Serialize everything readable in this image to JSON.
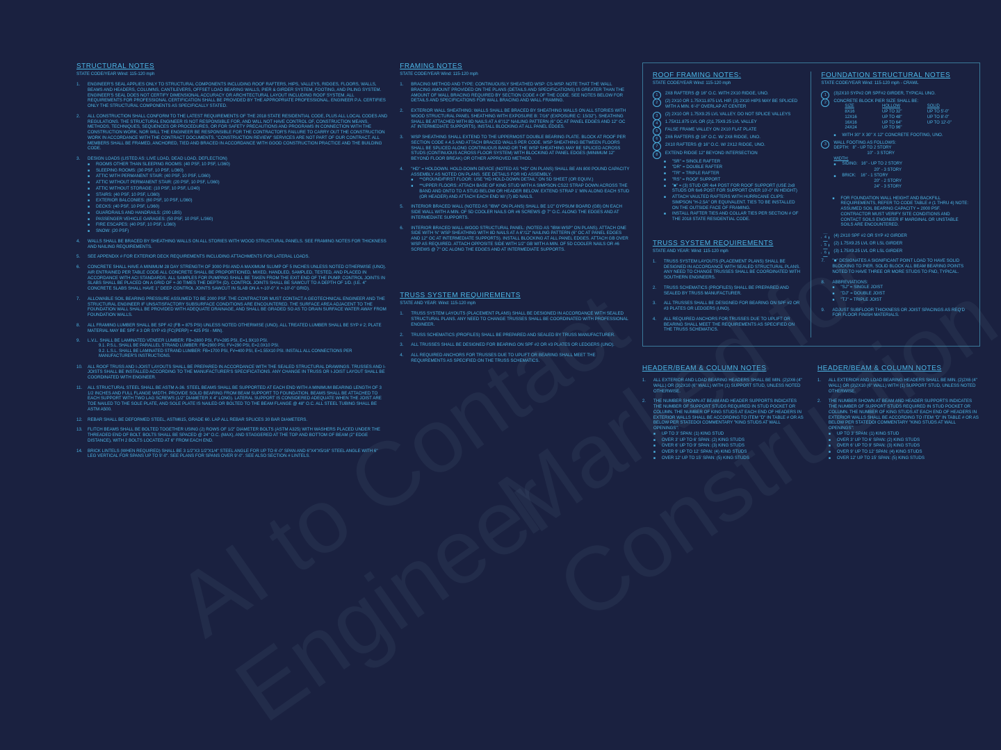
{
  "watermark1": "AI to Contact Engineer",
  "watermark2": "Marked for Construction",
  "structural": {
    "title": "STRUCTURAL NOTES",
    "subtitle": "STATE CODE/YEAR Wind: 115-120 mph",
    "items": [
      "ENGINEER'S SEAL APPLIES ONLY TO STRUCTURAL COMPONENTS INCLUDING ROOF RAFTERS, HIPS, VALLEYS, RIDGES, FLOORS, WALLS, BEAMS AND HEADERS, COLUMNS, CANTILEVERS, OFFSET LOAD BEARING WALLS, PIER & GIRDER SYSTEM, FOOTING, AND PILING SYSTEM. ENGINEER'S SEAL DOES NOT CERTIFY DIMENSIONAL ACCURACY OR ARCHITECTURAL LAYOUT INCLUDING ROOF SYSTEM. ALL REQUIREMENTS FOR PROFESSIONAL CERTIFICATION SHALL BE PROVIDED BY THE APPROPRIATE PROFESSIONAL. ENGINEER P.A. CERTIFIES ONLY THE STRUCTURAL COMPONENTS AS SPECIFICALLY STATED.",
      "ALL CONSTRUCTION SHALL CONFORM TO THE LATEST REQUIREMENTS OF THE 2018 STATE RESIDENTIAL CODE, PLUS ALL LOCAL CODES AND REGULATIONS. THE STRUCTURAL ENGINEER IS NOT RESPONSIBLE FOR, AND WILL NOT HAVE CONTROL OF, CONSTRUCTION MEANS, METHODS, TECHNIQUES, SEQUENCES OR PROCEDURES, OR FOR SAFETY PRECAUTIONS AND PROGRAMS IN CONNECTION WITH THE CONSTRUCTION WORK, NOR WILL THE ENGINEER BE RESPONSIBLE FOR THE CONTRACTOR'S FAILURE TO CARRY OUT THE CONSTRUCTION WORK IN ACCORDANCE WITH THE CONTRACT DOCUMENTS. \"CONSTRUCTION REVIEW\" SERVICES ARE NOT PART OF OUR CONTRACT. ALL MEMBERS SHALL BE FRAMED, ANCHORED, TIED AND BRACED IN ACCORDANCE WITH GOOD CONSTRUCTION PRACTICE AND THE BUILDING CODE.",
      "DESIGN LOADS (LISTED AS: LIVE LOAD, DEAD LOAD, DEFLECTION)",
      "WALLS SHALL BE BRACED BY SHEATHING WALLS ON ALL STORIES WITH WOOD STRUCTURAL PANELS. SEE FRAMING NOTES FOR THICKNESS AND NAILING REQUIREMENTS.",
      "SEE APPENDIX # FOR EXTERIOR DECK REQUIREMENTS INCLUDING ATTACHMENTS FOR LATERAL LOADS.",
      "CONCRETE SHALL HAVE A MINIMUM 28 DAY STRENGTH OF 3000 PSI AND A MAXIMUM SLUMP OF 5 INCHES UNLESS NOTED OTHERWISE (UNO). AIR ENTRAINED PER TABLE CODE ALL CONCRETE SHALL BE PROPORTIONED, MIXED, HANDLED, SAMPLED, TESTED, AND PLACED IN ACCORDANCE WITH ACI STANDARDS. ALL SAMPLES FOR PUMPING SHALL BE TAKEN FROM THE EXIT END OF THE PUMP. CONTROL JOINTS IN SLABS SHALL BE PLACED ON A GRID OF +-30 TIMES THE DEPTH (D). CONTROL JOINTS SHALL BE SAWCUT TO A DEPTH OF 1/D. (I.E. 4\" CONCRETE SLABS SHALL HAVE 1\" DEEP CONTROL JOINTS SAWCUT IN SLAB ON A +-10'-0\" x +-10'-0\" GRID).",
      "ALLOWABLE SOIL BEARING PRESSURE ASSUMED TO BE 2000 PSF. THE CONTRACTOR MUST CONTACT A GEOTECHNICAL ENGINEER AND THE STRUCTURAL ENGINEER IF UNSATISFACTORY SUBSURFACE CONDITIONS ARE ENCOUNTERED. THE SURFACE AREA ADJACENT TO THE FOUNDATION WALL SHALL BE PROVIDED WITH ADEQUATE DRAINAGE, AND SHALL BE GRADED SO AS TO DRAIN SURFACE WATER AWAY FROM FOUNDATION WALLS.",
      "ALL FRAMING LUMBER SHALL BE SPF #2 (Fb = 875 PSI) UNLESS NOTED OTHERWISE (UNO). ALL TREATED LUMBER SHALL BE SYP # 2; PLATE MATERIAL MAY BE SPF # 3 OR SYP #3 (Fc(perp) = 425 PSI - MIN).",
      "L.V.L. SHALL BE LAMINATED VENEER LUMBER: Fb=2800 PSI, Fv=285 PSI, E=1.9x10 PSI.",
      "ALL ROOF TRUSS AND I-JOIST LAYOUTS SHALL BE PREPARED IN ACCORDANCE WITH THE SEALED STRUCTURAL DRAWINGS. TRUSSES AND I-JOISTS SHALL BE INSTALLED ACCORDING TO THE MANUFACTURER'S SPECIFICATIONS. ANY CHANGE IN TRUSS OR I-JOIST LAYOUT SHALL BE COORDINATED WITH ENGINEER.",
      "ALL STRUCTURAL STEEL SHALL BE ASTM A-36. STEEL BEAMS SHALL BE SUPPORTED AT EACH END WITH A MINIMUM BEARING LENGTH OF 3 1/2 INCHES AND FULL FLANGE WIDTH. PROVIDE SOLID BEARING FROM BEAM SUPPORT TO FOUNDATION. BEAMS SHALL BE ATTACHED TO EACH SUPPORT WITH TWO LAG SCREWS (1/2\" DIAMETER x 4\" LONG). LATERAL SUPPORT IS CONSIDERED ADEQUATE WHEN THE JOIST ARE TOE NAILED TO THE SOLE PLATE, AND SOLE PLATE IS NAILED OR BOLTED TO THE BEAM FLANGE @ 48\" O.C. ALL STEEL TUBING SHALL BE ASTM A500.",
      "REBAR SHALL BE DEFORMED STEEL, ASTM615, GRADE 60. LAP ALL REBAR SPLICES 30 BAR DIAMETERS.",
      "FLITCH BEAMS SHALL BE BOLTED TOGETHER USING (2) ROWS OF 1/2\" DIAMETER BOLTS (ASTM A325) WITH WASHERS PLACED UNDER THE THREADED END OF BOLT. BOLTS SHALL BE SPACED @ 24\" O.C. (MAX), AND STAGGERED AT THE TOP AND BOTTOM OF BEAM (2\" EDGE DISTANCE), WITH 2 BOLTS LOCATED AT 6\" FROM EACH END.",
      "BRICK LINTELS (WHEN REQUIRED) SHALL BE 3 1/2\"x3 1/2\"x1/4\" STEEL ANGLE FOR UP TO 6'-0\" SPAN AND 6\"x4\"x5/16\" STEEL ANGLE WITH 6\" LEG VERTICAL FOR SPANS UP TO 9'-0\". SEE PLANS FOR SPANS OVER 9'-0\". SEE ALSO SECTION # LINTELS."
    ],
    "loads": [
      "ROOMS OTHER THAN SLEEPING ROOMS: (40 PSF, 10 PSF, L/360)",
      "SLEEPING ROOMS: (30 PSF, 10 PSF, L/360)",
      "ATTIC WITH PERMANENT STAIR: (40 PSF, 10 PSF, L/360)",
      "ATTIC WITHOUT PERMANENT STAIR: (20 PSF, 10 PSF, L/360)",
      "ATTIC WITHOUT STORAGE: (10 PSF, 10 PSF, L/240)",
      "STAIRS: (40 PSF, 10 PSF, L/360)",
      "EXTERIOR BALCONIES: (60 PSF, 10 PSF, L/360)",
      "DECKS: (40 PSF, 10 PSF, L/360)",
      "GUARDRAILS AND HANDRAILS: (200 LBS)",
      "PASSENGER VEHICLE GARAGES: (50 PSF, 10 PSF, L/360)",
      "FIRE ESCAPES: (40 PSF, 10 PSF, L/360)",
      "SNOW: (20 PSF)"
    ],
    "lvl": [
      "P.S.L. SHALL BE PARALLEL STRAND LUMBER: Fb=2900 PSI, Fv=290 PSI, E=2.0x10 PSI.",
      "L.S.L. SHALL BE LAMINATED STRAND LUMBER: Fb=1700 PSI, Fv=400 PSI, E=1.55x10 PSI. INSTALL ALL CONNECTIONS PER MANUFACTURER'S INSTRUCTIONS."
    ]
  },
  "framing": {
    "title": "FRAMING NOTES",
    "subtitle": "STATE CODE/YEAR Wind: 115-120 mph",
    "items": [
      "BRACING METHOD AND TYPE: CONTINUOUSLY SHEATHED WSP: CS-WSP. NOTE THAT THE WALL BRACING AMOUNT PROVIDED ON THE PLANS (DETAILS AND SPECIFICATIONS) IS GREATER THAN THE AMOUNT OF WALL BRACING REQUIRED BY SECTION CODE # OF THE CODE. SEE NOTES BELOW FOR DETAILS AND SPECIFICATIONS FOR WALL BRACING AND WALL FRAMING.",
      "EXTERIOR WALL SHEATHING: WALLS SHALL BE BRACED BY SHEATHING WALLS ON ALL STORIES WITH WOOD STRUCTURAL PANEL SHEATHING WITH EXPOSURE B: 7/16\" (EXPOSURE C: 15/32\"). SHEATHING SHALL BE ATTACHED WITH 8d NAILS AT A 6\"/12\" NAILING PATTERN (6\" OC AT PANEL EDGES AND 12\" OC AT INTERMEDIATE SUPPORTS). INSTALL BLOCKING AT ALL PANEL EDGES.",
      "WSP SHEATHING SHALL EXTEND TO THE UPPERMOST DOUBLE BEARING PLATE. BLOCK AT ROOF PER SECTION CODE #.4.5 AND ATTACH BRACED WALLS PER CODE. WSP SHEATHING BETWEEN FLOORS SHALL BE SPLICED ALONG CONTINUOUS BAND OR THE WSP SHEATHING MAY BE SPLICED ACROSS STUDS (CONTINUOUS ACROSS FLOOR SYSTEM) WITH BLOCKING AT PANEL EDGES (MINIMUM 12\" BEYOND FLOOR BREAK) OR OTHER APPROVED METHOD.",
      "\"HD\" = HOLDOWN. HOLD-DOWN DEVICE (NOTED AS \"HD\" ON PLANS) SHALL BE AN 800 POUND CAPACITY ASSEMBLY AS NOTED ON PLANS. SEE DETAILS FOR HD ASSEMBLY.",
      "INTERIOR BRACED WALL (NOTED AS \"IBW\" ON PLANS) SHALL BE 1/2\" GYPSUM BOARD (GB) ON EACH SIDE WALL WITH A MIN. OF 5d COOLER NAILS OR #6 SCREWS @ 7\" O.C. ALONG THE EDGES AND AT INTERMEDIATE SUPPORTS.",
      "INTERIOR BRACED WALL-WOOD STRUCTURAL PANEL: (NOTED AS \"IBW-WSP\" ON PLANS). ATTACH ONE SIDE WITH ⅜\" WSP SHEATHING WITH 8d NAILS AT A 6\"/12\" NAILING PATTERN (6\" OC AT PANEL EDGES AND 12\" OC AT INTERMEDIATE SUPPORTS). INSTALL BLOCKING AT ALL PANEL EDGES. ATTACH GB OVER WSP AS REQUIRED. ATTACH OPPOSITE SIDE WITH 1/2\" GB WITH A MIN. OF 5d COOLER NAILS OR #6 SCREWS @ 7\" OC ALONG THE EDGES AND AT INTERMEDIATE SUPPORTS."
    ],
    "item4sub": [
      "**GROUND/FIRST FLOOR: USE \"HD HOLD-DOWN DETAIL\" ON SD SHEET (OR EQUIV.)",
      "**UPPER FLOORS: ATTACH BASE OF KING STUD WITH A SIMPSON CS22 STRAP DOWN ACROSS THE BAND AND ONTO TO A STUD BELOW OR HEADER BELOW. EXTEND STRAP 1' MIN ALONG EACH STUD (OR HEADER) AND ATTACH EACH END W/ (7) 8d NAILS."
    ]
  },
  "roof": {
    "title": "ROOF FRAMING NOTES:",
    "subtitle": "STATE CODE/YEAR Wind: 115-120 mph",
    "items": [
      "2x8 RAFTERS @ 16\" O.C. WITH 2x10 RIDGE, UNO.",
      "(2) 2x10 OR 1.75x11.875 LVL HIP. (3) 2x10 HIPS MAY BE SPLICED WITH A MIN. 6'-0\" OVERLAP AT CENTER",
      "(2) 2x10 OR 1.75x9.25 LVL VALLEY. DO NOT SPLICE VALLEYS",
      "1.75x11.875 LVL OR (2)1.75x9.25 LVL VALLEY",
      "FALSE FRAME VALLEY ON 2x10 FLAT PLATE",
      "2x6 RAFTERS @ 16\" O.C. W/ 2x8 RIDGE, UNO.",
      "2x10 RAFTERS @ 16\" O.C. W/ 2x12 RIDGE, UNO.",
      "EXTEND RIDGE 12\" BEYOND INTERSECTION"
    ],
    "legend": [
      "\"SR\" = SINGLE RAFTER",
      "\"DR\" = DOUBLE RAFTER",
      "\"TR\" = TRIPLE RAFTER",
      "\"RS\" = ROOF SUPPORT",
      "\"■\" = (3) STUD OR 4x4 POST FOR ROOF SUPPORT (USE 2x8 STUDS OR 6x6 POST FOR SUPPORT OVER 10'-0\" IN HEIGHT)",
      "ATTACH VAULTED RAFTERS WITH HURRICANE CLIPS: SIMPSON \"H-2.5A\" OR EQUIVALENT. TIES TO BE INSTALLED ON THE OUTSIDE FACE OF FRAMING.",
      "INSTALL RAFTER TIES AND COLLAR TIES PER SECTION # OF THE 2018 STATE RESIDENTIAL CODE."
    ]
  },
  "foundation": {
    "title": "FOUNDATION STRUCTURAL NOTES",
    "subtitle": "STATE CODE/YEAR Wind: 115-120 mph - CRAWL",
    "items": [
      "(3)2x10 SYP#2 OR SPF#2 GIRDER, TYPICAL UNO.",
      "CONCRETE BLOCK PIER SIZE SHALL BE:",
      "WALL FOOTING AS FOLLOWS:"
    ],
    "piers": {
      "headers": [
        "SIZE",
        "HOLLOW",
        "SOLID"
      ],
      "rows": [
        [
          "8x16",
          "UP TO 32\"",
          "UP TO 5'-0\""
        ],
        [
          "12x16",
          "UP TO 48\"",
          "UP TO 8'-0\""
        ],
        [
          "16x16",
          "UP TO 64\"",
          "UP TO 12'-0\""
        ],
        [
          "24x24",
          "UP TO 96\"",
          ""
        ]
      ],
      "note": "WITH 30\" x 30\" x 12\" CONCRETE FOOTING, UNO."
    },
    "footing": {
      "depth": [
        "8\" - UP TO 2 STORY",
        "10\" - 3 STORY"
      ],
      "width_siding": [
        "16\" - UP TO 2 STORY",
        "20\" - 3 STORY"
      ],
      "width_brick": [
        "16\" - 1 STORY",
        "20\" - 2 STORY",
        "24\" - 3 STORY"
      ]
    },
    "bullets": [
      "FOR FOUNDATION WALL HEIGHT AND BACKFILL REQUIREMENTS, REFER TO CODE TABLE # (1 THRU 4) NOTE: ASSUMED SOIL BEARING CAPACITY = 2000 PSF. CONTRACTOR MUST VERIFY SITE CONDITIONS AND CONTACT SOILS ENGINEER IF MARGINAL OR UNSTABLE SOILS ARE ENCOUNTERED."
    ],
    "hex": [
      "(4) 2x10 SPF #2 OR SYP #2 GIRDER",
      "(2) 1.75x9.25 LVL OR LSL GIRDER",
      "(3) 1.75x9.25 LVL OR LSL GIRDER"
    ],
    "more": [
      "\"■\" DESIGNATES A SIGNIFICANT POINT LOAD TO HAVE SOLID BLOCKING TO PIER. SOLID BLOCK ALL BEAM BEARING POINTS NOTED TO HAVE THREE OR MORE STUDS TO FND, TYPICAL.",
      "ABBREVIATIONS:",
      "ADJUST SUBFLOOR THICKNESS OR JOIST SPACINGS AS REQ'D FOR FLOOR FINISH MATERIALS."
    ],
    "abbrev": [
      "\"SJ\" = SINGLE JOIST",
      "\"DJ\" = DOUBLE JOIST",
      "\"TJ\" = TRIPLE JOIST"
    ]
  },
  "truss": {
    "title": "TRUSS SYSTEM REQUIREMENTS",
    "subtitle": "STATE AND YEAR: Wind: 115-120 mph",
    "items": [
      "TRUSS SYSTEM LAYOUTS (PLACEMENT PLANS) SHALL BE DESIGNED IN ACCORDANCE WITH SEALED STRUCTURAL PLANS. ANY NEED TO CHANGE TRUSSES SHALL BE COORDINATED WITH SOUTHERN ENGINEERS.",
      "TRUSS SCHEMATICS (PROFILES) SHALL BE PREPARED AND SEALED BY TRUSS MANUFACTURER.",
      "ALL TRUSSES SHALL BE DESIGNED FOR BEARING ON SPF #2 OR #3 PLATES OR LEDGERS (UNO).",
      "ALL REQUIRED ANCHORS FOR TRUSSES DUE TO UPLIFT OR BEARING SHALL MEET THE REQUIREMENTS AS SPECIFIED ON THE TRUSS SCHEMATICS."
    ]
  },
  "truss2": {
    "title": "TRUSS SYSTEM REQUIREMENTS",
    "subtitle": "STATE AND YEAR: Wind: 115-120 mph",
    "items": [
      "TRUSS SYSTEM LAYOUTS (PLACEMENT PLANS) SHALL BE DESIGNED IN ACCORDANCE WITH SEALED STRUCTURAL PLANS. ANY NEED TO CHANGE TRUSSES SHALL BE COORDINATED WITH PROFESSIONAL ENGINEER.",
      "TRUSS SCHEMATICS (PROFILES) SHALL BE PREPARED AND SEALED BY TRUSS MANUFACTURER.",
      "ALL TRUSSES SHALL BE DESIGNED FOR BEARING ON SPF #2 OR #3 PLATES OR LEDGERS (UNO).",
      "ALL REQUIRED ANCHORS FOR TRUSSES DUE TO UPLIFT OR BEARING SHALL MEET THE REQUIREMENTS AS SPECIFIED ON THE TRUSS SCHEMATICS."
    ]
  },
  "header": {
    "title": "HEADER/BEAM & COLUMN NOTES",
    "items": [
      "ALL EXTERIOR AND LOAD BEARING HEADERS SHALL BE MIN. (2)2x6 (4\" WALL) OR (3)2x10 (6\" WALL) WITH (1) SUPPORT STUD, UNLESS NOTED OTHERWISE.",
      "THE NUMBER SHOWN AT BEAM AND HEADER SUPPORTS INDICATES THE NUMBER OF SUPPORT STUDS REQUIRED IN STUD POCKET OR COLUMN. THE NUMBER OF KING STUDS AT EACH END OF HEADERS IN EXTERIOR WALLS SHALL BE ACCORDING TO ITEM \"d\" IN TABLE # OR AS BELOW PER STATEDOI COMMENTARY \"KING STUDS AT WALL OPENINGS\":"
    ],
    "king": [
      "UP TO 3' SPAN: (1) KING STUD",
      "OVER 3' UP TO 6' SPAN: (2) KING STUDS",
      "OVER 6' UP TO 9' SPAN: (3) KING STUDS",
      "OVER 9' UP TO 12' SPAN: (4) KING STUDS",
      "OVER 12' UP TO 15' SPAN: (5) KING STUDS"
    ]
  }
}
